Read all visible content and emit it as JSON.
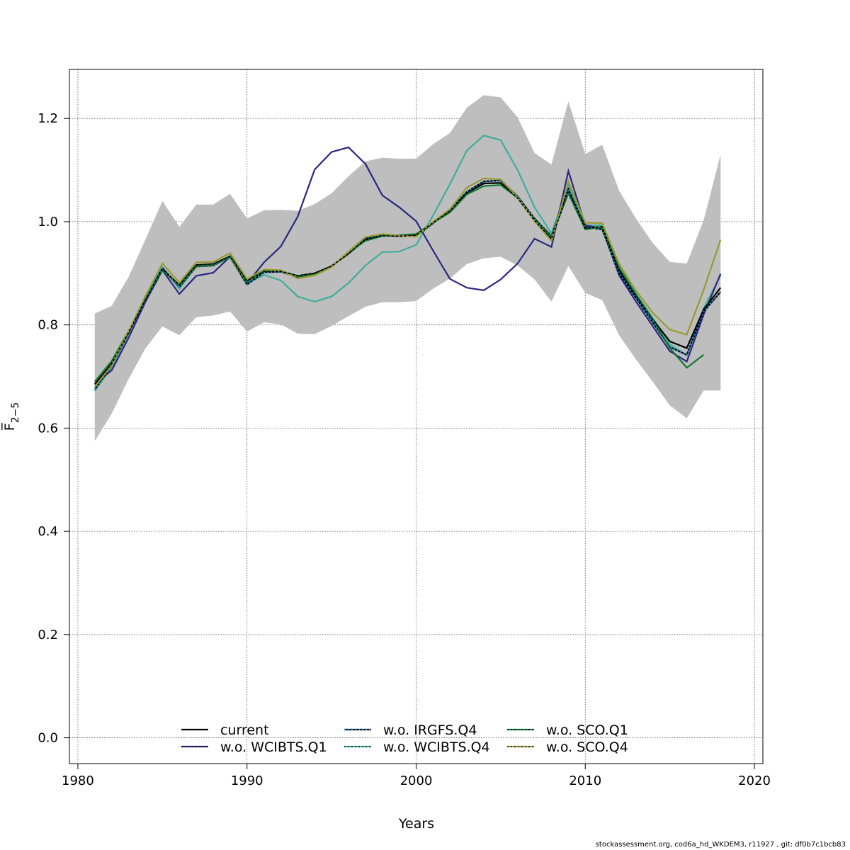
{
  "chart_data": {
    "type": "line",
    "xlabel": "Years",
    "ylabel": "F̅",
    "ylabel_sub": "2−5",
    "xlim": [
      1979.5,
      2020.5
    ],
    "ylim": [
      -0.05,
      1.295
    ],
    "xticks": [
      1980,
      1990,
      2000,
      2010,
      2020
    ],
    "yticks": [
      0.0,
      0.2,
      0.4,
      0.6,
      0.8,
      1.0,
      1.2
    ],
    "ytick_labels": [
      "0.0",
      "0.2",
      "0.4",
      "0.6",
      "0.8",
      "1.0",
      "1.2"
    ],
    "grid": true,
    "legend_position": "bottom-center",
    "band": {
      "x": [
        1981,
        1982,
        1983,
        1984,
        1985,
        1986,
        1987,
        1988,
        1989,
        1990,
        1991,
        1992,
        1993,
        1994,
        1995,
        1996,
        1997,
        1998,
        1999,
        2000,
        2001,
        2002,
        2003,
        2004,
        2005,
        2006,
        2007,
        2008,
        2009,
        2010,
        2011,
        2012,
        2013,
        2014,
        2015,
        2016,
        2017,
        2018
      ],
      "lower": [
        0.575,
        0.628,
        0.695,
        0.755,
        0.797,
        0.78,
        0.815,
        0.818,
        0.826,
        0.787,
        0.805,
        0.801,
        0.783,
        0.782,
        0.798,
        0.817,
        0.835,
        0.844,
        0.844,
        0.846,
        0.87,
        0.89,
        0.918,
        0.929,
        0.932,
        0.915,
        0.888,
        0.845,
        0.914,
        0.862,
        0.848,
        0.78,
        0.733,
        0.689,
        0.644,
        0.619,
        0.673,
        0.673
      ],
      "upper": [
        0.822,
        0.837,
        0.893,
        0.966,
        1.04,
        0.99,
        1.033,
        1.033,
        1.054,
        1.006,
        1.022,
        1.023,
        1.021,
        1.034,
        1.055,
        1.088,
        1.117,
        1.124,
        1.122,
        1.122,
        1.15,
        1.172,
        1.221,
        1.245,
        1.241,
        1.202,
        1.133,
        1.111,
        1.233,
        1.131,
        1.149,
        1.06,
        1.006,
        0.958,
        0.922,
        0.919,
        1.003,
        1.13
      ],
      "color": "#bebebe"
    },
    "series": [
      {
        "name": "current",
        "color": "#000000",
        "dash": "solid",
        "x": [
          1981,
          1982,
          1983,
          1984,
          1985,
          1986,
          1987,
          1988,
          1989,
          1990,
          1991,
          1992,
          1993,
          1994,
          1995,
          1996,
          1997,
          1998,
          1999,
          2000,
          2001,
          2002,
          2003,
          2004,
          2005,
          2006,
          2007,
          2008,
          2009,
          2010,
          2011,
          2012,
          2013,
          2014,
          2015,
          2016,
          2017,
          2018
        ],
        "values": [
          0.685,
          0.725,
          0.785,
          0.85,
          0.908,
          0.877,
          0.916,
          0.918,
          0.933,
          0.885,
          0.904,
          0.904,
          0.895,
          0.9,
          0.914,
          0.938,
          0.965,
          0.973,
          0.972,
          0.974,
          0.998,
          1.021,
          1.056,
          1.074,
          1.075,
          1.046,
          1.002,
          0.967,
          1.06,
          0.987,
          0.99,
          0.906,
          0.856,
          0.81,
          0.768,
          0.755,
          0.83,
          0.872
        ]
      },
      {
        "name": "w.o. WCIBTS.Q1",
        "color": "#2e2580",
        "dash": "solid",
        "x": [
          1981,
          1982,
          1983,
          1984,
          1985,
          1986,
          1987,
          1988,
          1989,
          1990,
          1991,
          1992,
          1993,
          1994,
          1995,
          1996,
          1997,
          1998,
          1999,
          2000,
          2001,
          2002,
          2003,
          2004,
          2005,
          2006,
          2007,
          2008,
          2009,
          2010,
          2011,
          2012,
          2013,
          2014,
          2015,
          2016,
          2017,
          2018
        ],
        "values": [
          0.686,
          0.712,
          0.775,
          0.845,
          0.906,
          0.86,
          0.895,
          0.901,
          0.932,
          0.88,
          0.921,
          0.952,
          1.01,
          1.101,
          1.135,
          1.144,
          1.112,
          1.051,
          1.028,
          1.001,
          0.944,
          0.889,
          0.872,
          0.867,
          0.888,
          0.919,
          0.967,
          0.951,
          1.098,
          0.993,
          0.987,
          0.896,
          0.845,
          0.797,
          0.749,
          0.729,
          0.82,
          0.899
        ]
      },
      {
        "name": "w.o. IRGFS.Q4",
        "color": "#1b8cd0",
        "dash": "dotted",
        "x": [
          1981,
          1982,
          1983,
          1984,
          1985,
          1986,
          1987,
          1988,
          1989,
          1990,
          1991,
          1992,
          1993,
          1994,
          1995,
          1996,
          1997,
          1998,
          1999,
          2000,
          2001,
          2002,
          2003,
          2004,
          2005,
          2006,
          2007,
          2008,
          2009,
          2010,
          2011,
          2012,
          2013,
          2014,
          2015,
          2016,
          2017,
          2018
        ],
        "values": [
          0.675,
          0.722,
          0.785,
          0.85,
          0.91,
          0.874,
          0.913,
          0.915,
          0.932,
          0.878,
          0.902,
          0.903,
          0.893,
          0.898,
          0.913,
          0.94,
          0.968,
          0.975,
          0.972,
          0.972,
          0.997,
          1.022,
          1.058,
          1.078,
          1.08,
          1.049,
          1.006,
          0.972,
          1.063,
          0.99,
          0.985,
          0.9,
          0.852,
          0.804,
          0.757,
          0.742,
          0.826,
          0.864
        ]
      },
      {
        "name": "w.o. WCIBTS.Q4",
        "color": "#3fae9c",
        "dash": "solid",
        "x": [
          1981,
          1982,
          1983,
          1984,
          1985,
          1986,
          1987,
          1988,
          1989,
          1990,
          1991,
          1992,
          1993,
          1994,
          1995,
          1996,
          1997,
          1998,
          1999,
          2000,
          2001,
          2002,
          2003,
          2004,
          2005,
          2006,
          2007,
          2008,
          2009,
          2010,
          2011,
          2012,
          2013,
          2014,
          2015,
          2016,
          2017,
          2018
        ],
        "values": [
          0.672,
          0.718,
          0.783,
          0.852,
          0.912,
          0.87,
          0.914,
          0.915,
          0.931,
          0.88,
          0.897,
          0.886,
          0.855,
          0.845,
          0.855,
          0.881,
          0.915,
          0.941,
          0.942,
          0.955,
          1.012,
          1.073,
          1.138,
          1.167,
          1.158,
          1.1,
          1.028,
          0.977,
          1.072,
          0.993,
          0.993,
          0.912,
          0.86,
          0.813,
          0.762,
          0.741,
          0.832,
          0.896
        ]
      },
      {
        "name": "w.o. SCO.Q1",
        "color": "#117733",
        "dash": "solid",
        "x": [
          1981,
          1982,
          1983,
          1984,
          1985,
          1986,
          1987,
          1988,
          1989,
          1990,
          1991,
          1992,
          1993,
          1994,
          1995,
          1996,
          1997,
          1998,
          1999,
          2000,
          2001,
          2002,
          2003,
          2004,
          2005,
          2006,
          2007,
          2008,
          2009,
          2010,
          2011,
          2012,
          2013,
          2014,
          2015,
          2016,
          2017
        ],
        "values": [
          0.69,
          0.73,
          0.788,
          0.852,
          0.906,
          0.876,
          0.914,
          0.916,
          0.931,
          0.883,
          0.905,
          0.905,
          0.894,
          0.898,
          0.913,
          0.94,
          0.963,
          0.972,
          0.974,
          0.976,
          0.998,
          1.018,
          1.053,
          1.069,
          1.071,
          1.046,
          1.003,
          0.97,
          1.055,
          0.985,
          0.99,
          0.911,
          0.859,
          0.81,
          0.755,
          0.717,
          0.742
        ]
      },
      {
        "name": "w.o. SCO.Q4",
        "color": "#999933",
        "dash": "solid",
        "x": [
          1981,
          1982,
          1983,
          1984,
          1985,
          1986,
          1987,
          1988,
          1989,
          1990,
          1991,
          1992,
          1993,
          1994,
          1995,
          1996,
          1997,
          1998,
          1999,
          2000,
          2001,
          2002,
          2003,
          2004,
          2005,
          2006,
          2007,
          2008,
          2009,
          2010,
          2011,
          2012,
          2013,
          2014,
          2015,
          2016,
          2017,
          2018
        ],
        "values": [
          0.68,
          0.722,
          0.788,
          0.856,
          0.919,
          0.882,
          0.921,
          0.922,
          0.939,
          0.889,
          0.907,
          0.906,
          0.89,
          0.896,
          0.912,
          0.942,
          0.97,
          0.976,
          0.973,
          0.971,
          1.0,
          1.024,
          1.066,
          1.084,
          1.082,
          1.047,
          1.001,
          0.963,
          1.078,
          0.998,
          0.997,
          0.918,
          0.866,
          0.823,
          0.791,
          0.781,
          0.868,
          0.965
        ]
      }
    ]
  },
  "footer": "stockassessment.org, cod6a_hd_WKDEM3, r11927 , git: df0b7c1bcb83"
}
